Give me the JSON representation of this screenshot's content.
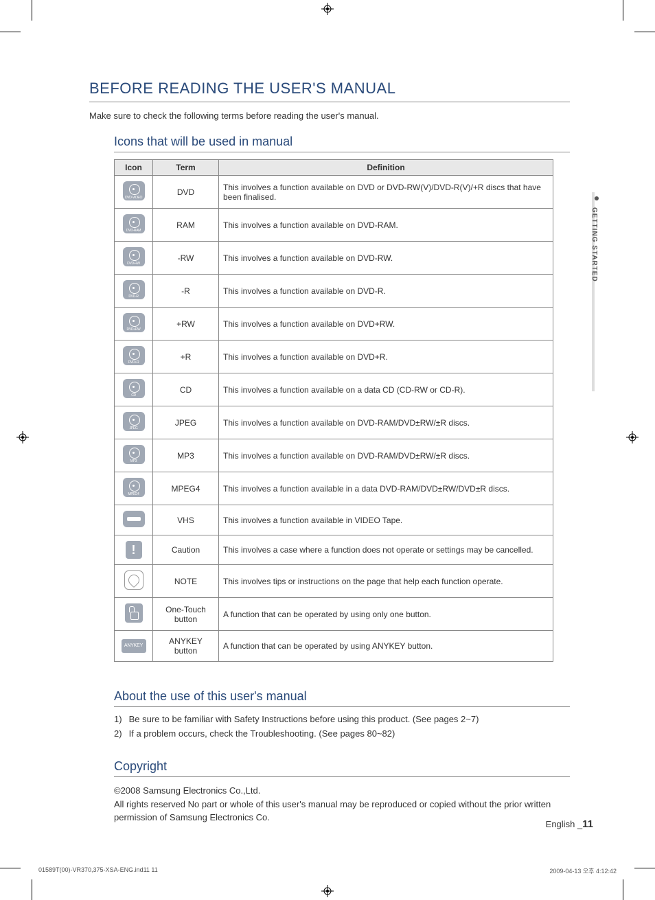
{
  "heading": "BEFORE READING THE USER'S MANUAL",
  "intro": "Make sure to check the following terms before reading the user's manual.",
  "section_icons_title": "Icons that will be used in manual",
  "table": {
    "headers": {
      "icon": "Icon",
      "term": "Term",
      "definition": "Definition"
    },
    "rows": [
      {
        "icon_label": "DVD-VIDEO",
        "term": "DVD",
        "definition": "This involves a function available on DVD or DVD-RW(V)/DVD-R(V)/+R discs that have been finalised."
      },
      {
        "icon_label": "DVD-RAM",
        "term": "RAM",
        "definition": "This involves a function available on DVD-RAM."
      },
      {
        "icon_label": "DVD-RW",
        "term": "-RW",
        "definition": "This involves a function available on DVD-RW."
      },
      {
        "icon_label": "DVD-R",
        "term": "-R",
        "definition": "This involves a function available on DVD-R."
      },
      {
        "icon_label": "DVD+RW",
        "term": "+RW",
        "definition": "This involves a function available on DVD+RW."
      },
      {
        "icon_label": "DVD+R",
        "term": "+R",
        "definition": "This involves a function available on DVD+R."
      },
      {
        "icon_label": "CD",
        "term": "CD",
        "definition": "This involves a function available on a data CD (CD-RW or CD-R)."
      },
      {
        "icon_label": "JPEG",
        "term": "JPEG",
        "definition": "This involves a function available on DVD-RAM/DVD±RW/±R discs."
      },
      {
        "icon_label": "MP3",
        "term": "MP3",
        "definition": "This involves a function available on DVD-RAM/DVD±RW/±R discs."
      },
      {
        "icon_label": "MPEG4",
        "term": "MPEG4",
        "definition": "This involves a function available in a data DVD-RAM/DVD±RW/DVD±R discs."
      },
      {
        "icon_label": "VHS",
        "term": "VHS",
        "definition": "This involves a function available in VIDEO Tape.",
        "icon_type": "vhs"
      },
      {
        "icon_label": "!",
        "term": "Caution",
        "definition": "This involves a case where a function does not operate or settings may be cancelled.",
        "icon_type": "caution"
      },
      {
        "icon_label": "",
        "term": "NOTE",
        "definition": "This involves tips or instructions on the page that help each function operate.",
        "icon_type": "note"
      },
      {
        "icon_label": "",
        "term": "One-Touch button",
        "definition": "A function that can be operated by using only one button.",
        "icon_type": "touch"
      },
      {
        "icon_label": "ANYKEY",
        "term": "ANYKEY button",
        "definition": "A function that can be operated by using ANYKEY button.",
        "icon_type": "anykey"
      }
    ]
  },
  "section_about_title": "About the use of this user's manual",
  "about_items": [
    "Be sure to be familiar with Safety Instructions before using this product. (See pages 2~7)",
    "If a problem occurs, check the Troubleshooting. (See pages 80~82)"
  ],
  "copyright_title": "Copyright",
  "copyright_line1": "©2008 Samsung Electronics Co.,Ltd.",
  "copyright_line2": "All rights reserved No part or whole of this user's manual may be reproduced or copied without the prior written permission of Samsung Electronics Co.",
  "side_tab": "GETTING STARTED",
  "footer_lang": "English _",
  "footer_page": "11",
  "imprint_left": "01589T(00)-VR370,375-XSA-ENG.ind11   11",
  "imprint_right": "2009-04-13   오후 4:12:42",
  "colors": {
    "heading": "#2a4a7a",
    "icon_bg": "#a0a8b4",
    "header_bg": "#e8e8e8",
    "border": "#888888",
    "text": "#333333"
  }
}
